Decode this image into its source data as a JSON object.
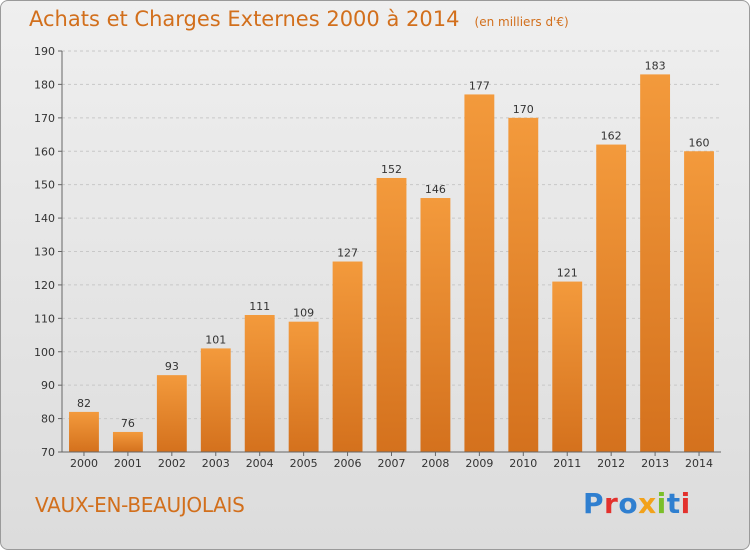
{
  "chart_data": {
    "type": "bar",
    "title": "Achats et Charges Externes 2000 à 2014",
    "subtitle": "(en milliers d'€)",
    "categories": [
      "2000",
      "2001",
      "2002",
      "2003",
      "2004",
      "2005",
      "2006",
      "2007",
      "2008",
      "2009",
      "2010",
      "2011",
      "2012",
      "2013",
      "2014"
    ],
    "values": [
      82,
      76,
      93,
      101,
      111,
      109,
      127,
      152,
      146,
      177,
      170,
      121,
      162,
      183,
      160
    ],
    "ylim": [
      70,
      190
    ],
    "yticks": [
      70,
      80,
      90,
      100,
      110,
      120,
      130,
      140,
      150,
      160,
      170,
      180,
      190
    ],
    "grid": true,
    "bar_color": "#f39a3c",
    "bar_color_dark": "#d4711d"
  },
  "footer": {
    "commune": "VAUX-EN-BEAUJOLAIS",
    "brand": "Proxiti"
  }
}
